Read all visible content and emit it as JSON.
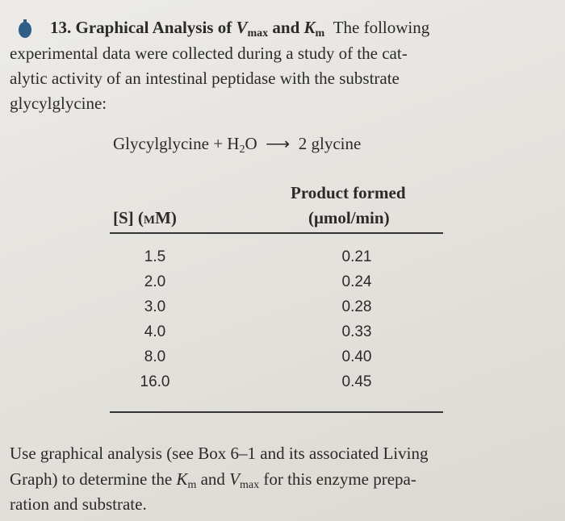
{
  "problem": {
    "number": "13.",
    "title": {
      "t1": "Graphical Analysis of ",
      "v": "V",
      "vsub": "max",
      "t2": " and ",
      "k": "K",
      "ksub": "m"
    },
    "intro": [
      "The following",
      "experimental data were collected during a study of the cat-",
      "alytic activity of an intestinal peptidase with the substrate",
      "glycylglycine:"
    ]
  },
  "reaction": {
    "left": "Glycylglycine + H",
    "sub": "2",
    "mid": "O",
    "arrow": "⟶",
    "right": "2 glycine"
  },
  "table": {
    "headers": {
      "col1": "[S] (mM)",
      "col2_line1": "Product formed",
      "col2_line2": "(μmol/min)"
    },
    "rows": [
      [
        "1.5",
        "0.21"
      ],
      [
        "2.0",
        "0.24"
      ],
      [
        "3.0",
        "0.28"
      ],
      [
        "4.0",
        "0.33"
      ],
      [
        "8.0",
        "0.40"
      ],
      [
        "16.0",
        "0.45"
      ]
    ]
  },
  "closing": {
    "line1": "Use graphical analysis (see Box 6–1 and its associated Living",
    "line2a": "Graph) to determine the ",
    "k": "K",
    "ksub": "m",
    "and": " and ",
    "v": "V",
    "vsub": "max",
    "line2b": " for this enzyme prepa-",
    "line3": "ration and substrate."
  }
}
